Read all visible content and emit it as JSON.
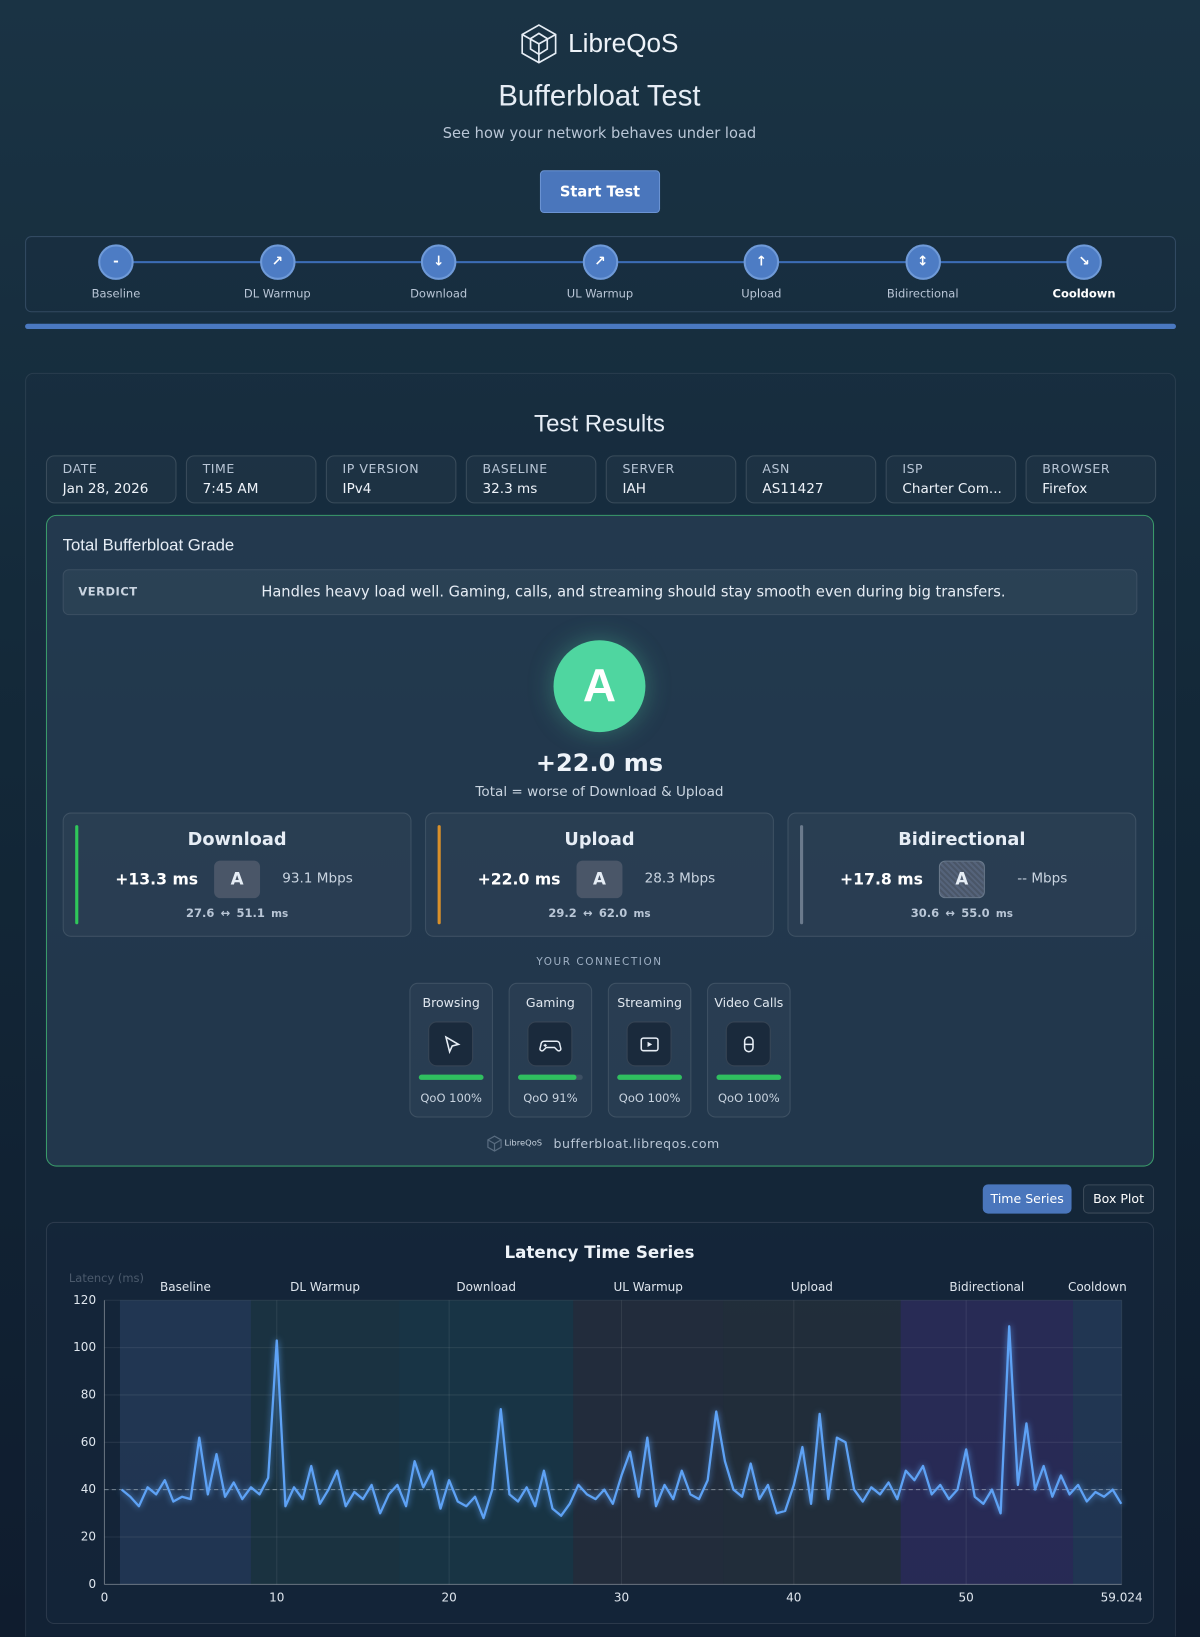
{
  "header": {
    "brand": "LibreQoS",
    "title": "Bufferbloat Test",
    "subtitle": "See how your network behaves under load",
    "button": "Start Test"
  },
  "stepper": {
    "steps": [
      {
        "icon": "-",
        "label": "Baseline"
      },
      {
        "icon": "↗",
        "label": "DL Warmup"
      },
      {
        "icon": "↓",
        "label": "Download"
      },
      {
        "icon": "↗",
        "label": "UL Warmup"
      },
      {
        "icon": "↑",
        "label": "Upload"
      },
      {
        "icon": "↕",
        "label": "Bidirectional"
      },
      {
        "icon": "↘",
        "label": "Cooldown"
      }
    ]
  },
  "results": {
    "title": "Test Results",
    "info": [
      {
        "label": "DATE",
        "value": "Jan 28, 2026"
      },
      {
        "label": "TIME",
        "value": "7:45 AM"
      },
      {
        "label": "IP VERSION",
        "value": "IPv4"
      },
      {
        "label": "BASELINE",
        "value": "32.3 ms"
      },
      {
        "label": "SERVER",
        "value": "IAH"
      },
      {
        "label": "ASN",
        "value": "AS11427"
      },
      {
        "label": "ISP",
        "value": "Charter Com..."
      },
      {
        "label": "BROWSER",
        "value": "Firefox"
      }
    ],
    "grade": {
      "title": "Total Bufferbloat Grade",
      "verdict_label": "VERDICT",
      "verdict": "Handles heavy load well. Gaming, calls, and streaming should stay smooth even during big transfers.",
      "letter": "A",
      "total": "+22.0 ms",
      "note": "Total = worse of Download & Upload",
      "directions": [
        {
          "name": "Download",
          "latency": "+13.3 ms",
          "grade": "A",
          "throughput": "93.1 Mbps",
          "low": "27.6",
          "arrow": "↔",
          "high": "51.1",
          "unit": "ms",
          "color": "#2fc75a"
        },
        {
          "name": "Upload",
          "latency": "+22.0 ms",
          "grade": "A",
          "throughput": "28.3 Mbps",
          "low": "29.2",
          "arrow": "↔",
          "high": "62.0",
          "unit": "ms",
          "color": "#d9902a"
        },
        {
          "name": "Bidirectional",
          "latency": "+17.8 ms",
          "grade": "A",
          "throughput": "-- Mbps",
          "low": "30.6",
          "arrow": "↔",
          "high": "55.0",
          "unit": "ms",
          "color": "#6b7a8c"
        }
      ],
      "connection_label": "YOUR CONNECTION",
      "qoo": [
        {
          "name": "Browsing",
          "label": "QoO 100%",
          "value": 100
        },
        {
          "name": "Gaming",
          "label": "QoO 91%",
          "value": 91
        },
        {
          "name": "Streaming",
          "label": "QoO 100%",
          "value": 100
        },
        {
          "name": "Video Calls",
          "label": "QoO 100%",
          "value": 100
        }
      ],
      "footer_brand": "LibreQoS",
      "footer_url": "bufferbloat.libreqos.com"
    }
  },
  "tabs": [
    "Time Series",
    "Box Plot"
  ],
  "chart_data": {
    "type": "line",
    "title": "Latency Time Series",
    "y_label": "Latency (ms)",
    "color": "#5ea2f5",
    "phases": [
      {
        "name": "Baseline",
        "start": 0.9,
        "end": 8.5,
        "color": "rgba(70,100,150,0.28)"
      },
      {
        "name": "DL Warmup",
        "start": 8.5,
        "end": 17.1,
        "color": "rgba(50,100,95,0.22)"
      },
      {
        "name": "Download",
        "start": 17.1,
        "end": 27.2,
        "color": "rgba(40,110,115,0.22)"
      },
      {
        "name": "UL Warmup",
        "start": 27.2,
        "end": 35.9,
        "color": "rgba(85,75,75,0.22)"
      },
      {
        "name": "Upload",
        "start": 35.9,
        "end": 46.2,
        "color": "rgba(90,80,65,0.2)"
      },
      {
        "name": "Bidirectional",
        "start": 46.2,
        "end": 56.2,
        "color": "rgba(95,60,160,0.28)"
      },
      {
        "name": "Cooldown",
        "start": 56.2,
        "end": 59.024,
        "color": "rgba(70,100,150,0.28)"
      }
    ],
    "reference_line": 40,
    "x": [
      1,
      1.5,
      2,
      2.5,
      3,
      3.5,
      4,
      4.5,
      5,
      5.5,
      6,
      6.5,
      7,
      7.5,
      8,
      8.5,
      9,
      9.5,
      10,
      10.5,
      11,
      11.5,
      12,
      12.5,
      13,
      13.5,
      14,
      14.5,
      15,
      15.5,
      16,
      16.5,
      17,
      17.5,
      18,
      18.5,
      19,
      19.5,
      20,
      20.5,
      21,
      21.5,
      22,
      22.5,
      23,
      23.5,
      24,
      24.5,
      25,
      25.5,
      26,
      26.5,
      27,
      27.5,
      28,
      28.5,
      29,
      29.5,
      30,
      30.5,
      31,
      31.5,
      32,
      32.5,
      33,
      33.5,
      34,
      34.5,
      35,
      35.5,
      36,
      36.5,
      37,
      37.5,
      38,
      38.5,
      39,
      39.5,
      40,
      40.5,
      41,
      41.5,
      42,
      42.5,
      43,
      43.5,
      44,
      44.5,
      45,
      45.5,
      46,
      46.5,
      47,
      47.5,
      48,
      48.5,
      49,
      49.5,
      50,
      50.5,
      51,
      51.5,
      52,
      52.5,
      53,
      53.5,
      54,
      54.5,
      55,
      55.5,
      56,
      56.5,
      57,
      57.5,
      58,
      58.5,
      59
    ],
    "values": [
      40,
      37,
      33,
      41,
      38,
      44,
      35,
      37,
      36,
      62,
      38,
      55,
      37,
      43,
      36,
      41,
      38,
      45,
      103,
      33,
      41,
      36,
      50,
      34,
      40,
      48,
      33,
      39,
      36,
      42,
      30,
      38,
      42,
      33,
      52,
      41,
      48,
      32,
      44,
      35,
      33,
      37,
      28,
      40,
      74,
      38,
      35,
      41,
      33,
      48,
      32,
      29,
      34,
      42,
      38,
      36,
      40,
      34,
      46,
      56,
      37,
      62,
      33,
      42,
      36,
      48,
      38,
      36,
      44,
      73,
      52,
      40,
      37,
      51,
      36,
      42,
      30,
      31,
      42,
      58,
      34,
      72,
      36,
      62,
      60,
      40,
      35,
      41,
      38,
      43,
      36,
      48,
      44,
      50,
      38,
      42,
      36,
      40,
      57,
      37,
      34,
      40,
      30,
      109,
      42,
      68,
      40,
      50,
      37,
      46,
      38,
      42,
      35,
      39,
      37,
      40,
      34
    ],
    "xlim": [
      0,
      59.024
    ],
    "ylim": [
      0,
      120
    ],
    "xticks": [
      0,
      10,
      20,
      30,
      40,
      50,
      59.024
    ],
    "yticks": [
      0,
      20,
      40,
      60,
      80,
      100,
      120
    ],
    "grid": true
  }
}
